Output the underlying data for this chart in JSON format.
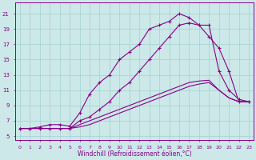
{
  "xlabel": "Windchill (Refroidissement éolien,°C)",
  "background_color": "#cce8e8",
  "grid_color": "#aad4d4",
  "line_color": "#880088",
  "xlim": [
    -0.5,
    23.5
  ],
  "ylim": [
    4.5,
    22.5
  ],
  "xticks": [
    0,
    1,
    2,
    3,
    4,
    5,
    6,
    7,
    8,
    9,
    10,
    11,
    12,
    13,
    14,
    15,
    16,
    17,
    18,
    19,
    20,
    21,
    22,
    23
  ],
  "yticks": [
    5,
    7,
    9,
    11,
    13,
    15,
    17,
    19,
    21
  ],
  "curve1_x": [
    0,
    1,
    2,
    3,
    4,
    5,
    6,
    7,
    8,
    9,
    10,
    11,
    12,
    13,
    14,
    15,
    16,
    17,
    18,
    19,
    20,
    21,
    22,
    23
  ],
  "curve1_y": [
    6,
    6,
    6.2,
    6.5,
    6.5,
    6.3,
    8,
    10.5,
    12,
    13,
    15,
    16,
    17,
    19,
    19.5,
    20,
    21,
    20.5,
    19.5,
    19.5,
    13.5,
    11,
    9.8,
    9.5
  ],
  "curve2_x": [
    0,
    1,
    2,
    3,
    4,
    5,
    6,
    7,
    8,
    9,
    10,
    11,
    12,
    13,
    14,
    15,
    16,
    17,
    18,
    19,
    20,
    21,
    22,
    23
  ],
  "curve2_y": [
    6,
    6,
    6,
    6,
    6,
    6,
    7,
    7.5,
    8.5,
    9.5,
    11,
    12,
    13.5,
    15,
    16.5,
    18,
    19.5,
    19.8,
    19.5,
    18,
    16.5,
    13.5,
    9.5,
    9.5
  ],
  "curve3_x": [
    0,
    1,
    2,
    3,
    4,
    5,
    6,
    7,
    8,
    9,
    10,
    11,
    12,
    13,
    14,
    15,
    16,
    17,
    18,
    19,
    20,
    21,
    22,
    23
  ],
  "curve3_y": [
    6,
    6,
    6,
    6,
    6,
    6,
    6.5,
    7,
    7.5,
    8,
    8.5,
    9,
    9.5,
    10,
    10.5,
    11,
    11.5,
    12,
    12.2,
    12.3,
    11,
    10,
    9.5,
    9.5
  ],
  "curve4_x": [
    0,
    1,
    2,
    3,
    4,
    5,
    6,
    7,
    8,
    9,
    10,
    11,
    12,
    13,
    14,
    15,
    16,
    17,
    18,
    19,
    20,
    21,
    22,
    23
  ],
  "curve4_y": [
    6,
    6,
    6,
    6,
    6,
    6,
    6.2,
    6.5,
    7,
    7.5,
    8,
    8.5,
    9,
    9.5,
    10,
    10.5,
    11,
    11.5,
    11.8,
    12,
    11,
    10,
    9.5,
    9.5
  ]
}
